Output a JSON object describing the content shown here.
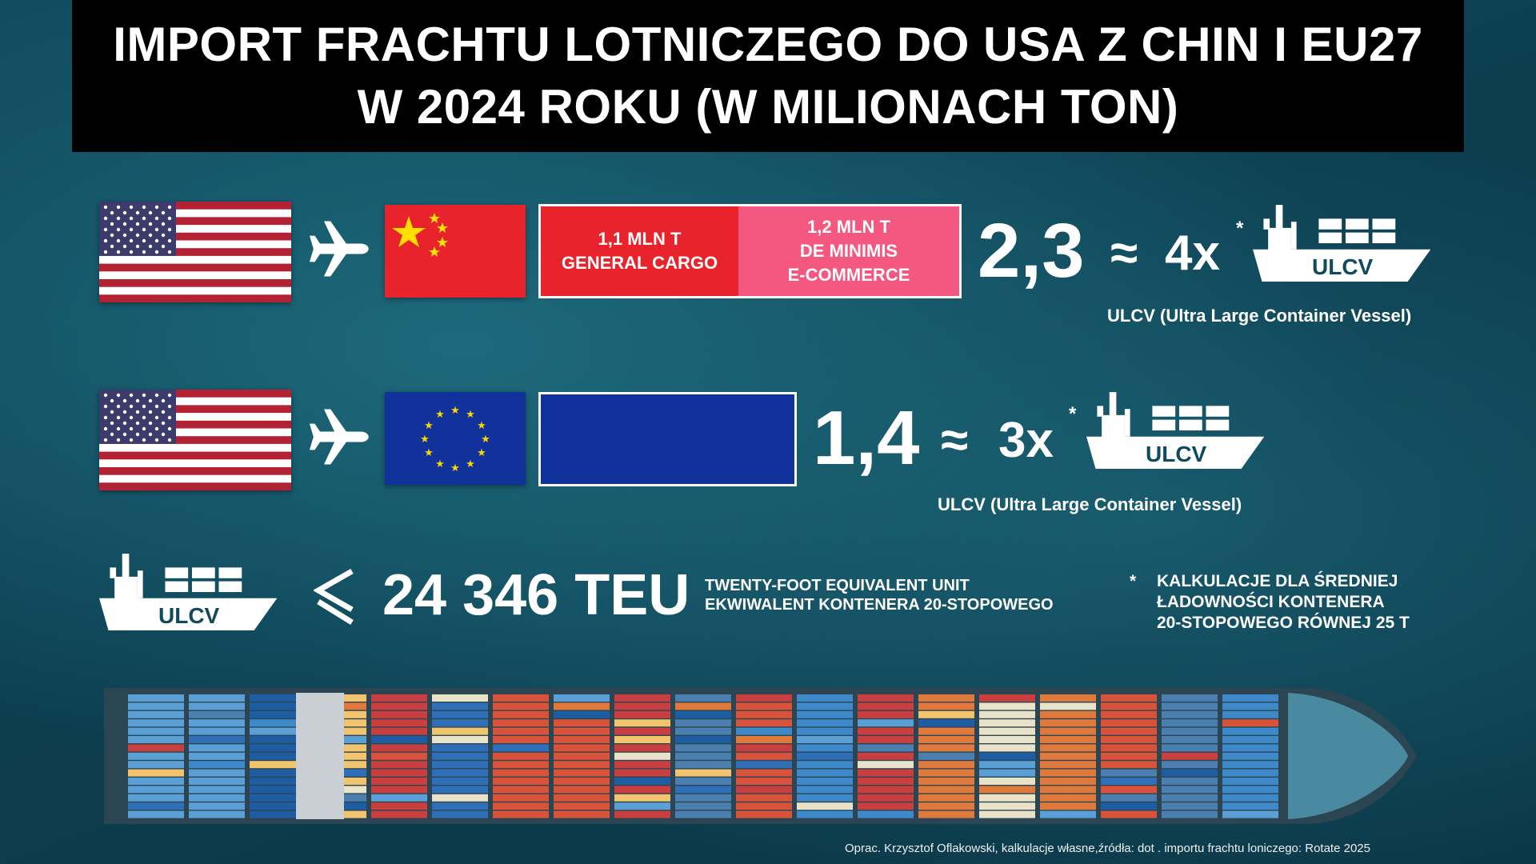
{
  "title": {
    "line1": "IMPORT FRACHTU LOTNICZEGO DO USA Z CHIN I EU27",
    "line2": "W 2024 ROKU (W MILIONACH TON)"
  },
  "colors": {
    "china_red": "#e8232b",
    "ecommerce_pink": "#f4577f",
    "eu_blue": "#12329b",
    "title_bg": "#000000"
  },
  "icons": [
    "us-flag-icon",
    "airplane-icon",
    "china-flag-icon",
    "eu-flag-icon",
    "ulcv-ship-icon",
    "less-or-equal-icon"
  ],
  "china_row": {
    "general_cargo": "1,1 MLN T\nGENERAL CARGO",
    "de_minimis": "1,2 MLN T\nDE MINIMIS\nE-COMMERCE",
    "total": "2,3",
    "approx": "≈",
    "multiplier": "4x",
    "asterisk": "*",
    "ship_label": "ULCV",
    "caption": "ULCV (Ultra Large Container Vessel)"
  },
  "eu_row": {
    "total": "1,4",
    "approx": "≈",
    "multiplier": "3x",
    "asterisk": "*",
    "ship_label": "ULCV",
    "caption": "ULCV (Ultra Large Container Vessel)"
  },
  "teu_row": {
    "ship_label": "ULCV",
    "value": "24 346 TEU",
    "desc_line1": "TWENTY-FOOT EQUIVALENT UNIT",
    "desc_line2": "EKWIWALENT KONTENERA 20-STOPOWEGO"
  },
  "note": {
    "asterisk": "*",
    "line1": "KALKULACJE DLA ŚREDNIEJ",
    "line2": "ŁADOWNOŚCI  KONTENERA",
    "line3": "20-STOPOWEGO RÓWNEJ 25 T"
  },
  "source": "Oprac. Krzysztof Oflakowski, kalkulacje własne,źródła: dot . importu frachtu loniczego: Rotate 2025"
}
